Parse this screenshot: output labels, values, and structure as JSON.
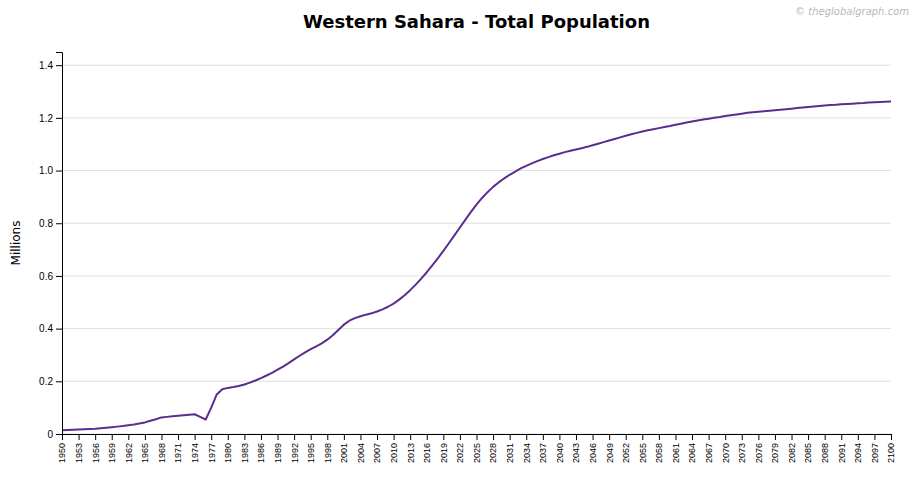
{
  "chart_data": {
    "type": "line",
    "title": "Western Sahara - Total Population",
    "ylabel": "Millions",
    "annotations": [
      "© theglobalgraph.com"
    ],
    "color": "#5b2d8e",
    "grid": "y",
    "xlim": [
      1950,
      2100
    ],
    "ylim": [
      0,
      1.45
    ],
    "yticks": [
      0,
      0.2,
      0.4,
      0.6,
      0.8,
      {
        "value": 1,
        "label": "1.0"
      },
      1.2,
      1.4
    ],
    "xticks": [
      1950,
      1953,
      1956,
      1959,
      1962,
      1965,
      1968,
      1971,
      1974,
      1977,
      1980,
      1983,
      1986,
      1989,
      1992,
      1995,
      1998,
      2001,
      2004,
      2007,
      2010,
      2013,
      2016,
      2019,
      2022,
      2025,
      2028,
      2031,
      2034,
      2037,
      2040,
      2043,
      2046,
      2049,
      2052,
      2055,
      2058,
      2061,
      2064,
      2067,
      2070,
      2073,
      2076,
      2079,
      2082,
      2085,
      2088,
      2091,
      2094,
      2097,
      2100
    ],
    "x": [
      1950,
      1951,
      1952,
      1953,
      1954,
      1955,
      1956,
      1957,
      1958,
      1959,
      1960,
      1961,
      1962,
      1963,
      1964,
      1965,
      1966,
      1967,
      1968,
      1969,
      1970,
      1971,
      1972,
      1973,
      1974,
      1975,
      1976,
      1977,
      1978,
      1979,
      1980,
      1981,
      1982,
      1983,
      1984,
      1985,
      1986,
      1987,
      1988,
      1989,
      1990,
      1991,
      1992,
      1993,
      1994,
      1995,
      1996,
      1997,
      1998,
      1999,
      2000,
      2001,
      2002,
      2003,
      2004,
      2005,
      2006,
      2007,
      2008,
      2009,
      2010,
      2011,
      2012,
      2013,
      2014,
      2015,
      2016,
      2017,
      2018,
      2019,
      2020,
      2021,
      2022,
      2023,
      2024,
      2025,
      2026,
      2027,
      2028,
      2029,
      2030,
      2031,
      2032,
      2033,
      2034,
      2035,
      2036,
      2037,
      2038,
      2039,
      2040,
      2041,
      2042,
      2043,
      2044,
      2045,
      2046,
      2047,
      2048,
      2049,
      2050,
      2051,
      2052,
      2053,
      2054,
      2055,
      2056,
      2057,
      2058,
      2059,
      2060,
      2061,
      2062,
      2063,
      2064,
      2065,
      2066,
      2067,
      2068,
      2069,
      2070,
      2071,
      2072,
      2073,
      2074,
      2075,
      2076,
      2077,
      2078,
      2079,
      2080,
      2081,
      2082,
      2083,
      2084,
      2085,
      2086,
      2087,
      2088,
      2089,
      2090,
      2091,
      2092,
      2093,
      2094,
      2095,
      2096,
      2097,
      2098,
      2099,
      2100
    ],
    "values": [
      0.014,
      0.015,
      0.016,
      0.017,
      0.018,
      0.019,
      0.02,
      0.022,
      0.024,
      0.026,
      0.028,
      0.03,
      0.033,
      0.036,
      0.04,
      0.044,
      0.05,
      0.056,
      0.063,
      0.065,
      0.067,
      0.069,
      0.071,
      0.073,
      0.075,
      0.065,
      0.055,
      0.1,
      0.15,
      0.17,
      0.175,
      0.178,
      0.182,
      0.188,
      0.195,
      0.203,
      0.212,
      0.222,
      0.232,
      0.244,
      0.256,
      0.269,
      0.283,
      0.297,
      0.31,
      0.322,
      0.333,
      0.344,
      0.358,
      0.375,
      0.395,
      0.415,
      0.43,
      0.44,
      0.447,
      0.453,
      0.458,
      0.465,
      0.473,
      0.483,
      0.495,
      0.51,
      0.527,
      0.546,
      0.567,
      0.59,
      0.614,
      0.64,
      0.667,
      0.695,
      0.724,
      0.754,
      0.784,
      0.814,
      0.843,
      0.871,
      0.896,
      0.918,
      0.938,
      0.955,
      0.97,
      0.984,
      0.996,
      1.008,
      1.018,
      1.027,
      1.036,
      1.044,
      1.051,
      1.058,
      1.064,
      1.07,
      1.075,
      1.08,
      1.085,
      1.09,
      1.096,
      1.102,
      1.108,
      1.114,
      1.12,
      1.126,
      1.132,
      1.138,
      1.143,
      1.148,
      1.153,
      1.157,
      1.161,
      1.165,
      1.169,
      1.174,
      1.178,
      1.182,
      1.186,
      1.19,
      1.194,
      1.197,
      1.2,
      1.203,
      1.207,
      1.21,
      1.213,
      1.216,
      1.219,
      1.221,
      1.223,
      1.225,
      1.227,
      1.229,
      1.231,
      1.233,
      1.235,
      1.237,
      1.239,
      1.241,
      1.243,
      1.245,
      1.247,
      1.249,
      1.25,
      1.252,
      1.253,
      1.254,
      1.255,
      1.256,
      1.258,
      1.259,
      1.26,
      1.261,
      1.262
    ]
  }
}
